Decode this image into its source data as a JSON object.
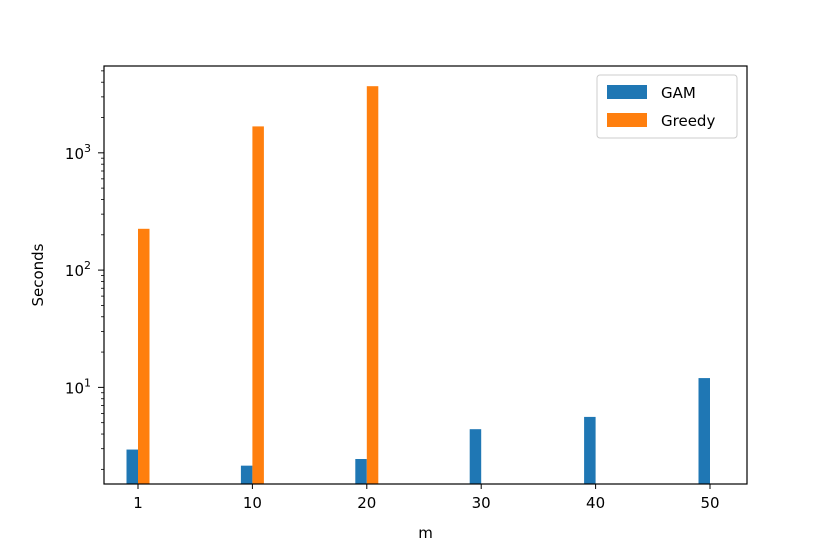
{
  "chart_data": {
    "type": "bar",
    "title": "",
    "xlabel": "m",
    "ylabel": "Seconds",
    "yscale": "log",
    "ylim": [
      1.5,
      5500
    ],
    "categories": [
      "1",
      "10",
      "20",
      "30",
      "40",
      "50"
    ],
    "series": [
      {
        "name": "GAM",
        "color": "#1f77b4",
        "values": [
          2.95,
          2.15,
          2.45,
          4.4,
          5.6,
          12.0
        ]
      },
      {
        "name": "Greedy",
        "color": "#ff7f0e",
        "values": [
          225,
          1680,
          3700,
          null,
          null,
          null
        ]
      }
    ],
    "yticks": [
      {
        "base": "10",
        "exp": "1",
        "value": 10
      },
      {
        "base": "10",
        "exp": "2",
        "value": 100
      },
      {
        "base": "10",
        "exp": "3",
        "value": 1000
      }
    ],
    "legend": {
      "position": "top-right"
    },
    "grid": false
  }
}
